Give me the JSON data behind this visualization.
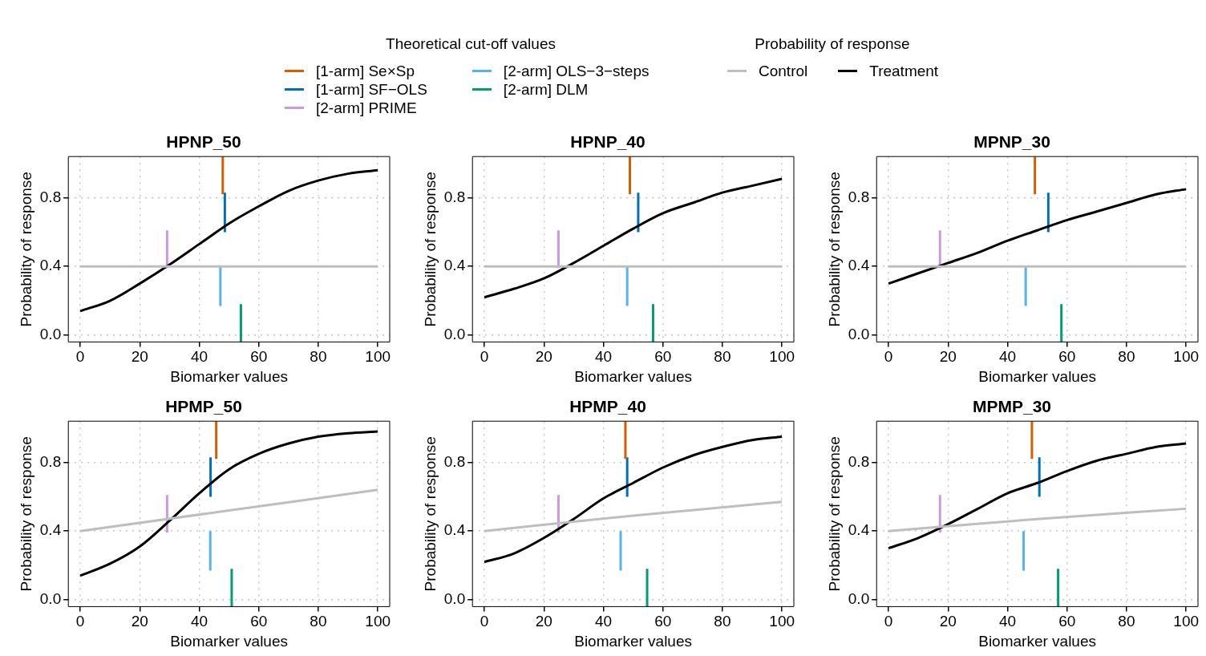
{
  "chart_data": [
    {
      "type": "line",
      "title": "HPNP_50",
      "xlabel": "Biomarker values",
      "ylabel": "Probability of response",
      "legend_title": "Theoretical cut-off values",
      "annotations": [
        "Probability of response"
      ],
      "legend": "top",
      "grid": true,
      "marker": "none",
      "line_style": "solid",
      "xlim": [
        -4,
        104
      ],
      "ylim": [
        -0.04,
        1.04
      ],
      "xticks": [
        0,
        20,
        40,
        60,
        80,
        100
      ],
      "yticks": [
        {
          "value": 0,
          "label": "0.0"
        },
        {
          "value": 0.4,
          "label": "0.4"
        },
        {
          "value": 0.8,
          "label": "0.8"
        }
      ],
      "x": [
        0,
        10,
        20,
        30,
        40,
        50,
        60,
        70,
        80,
        90,
        100
      ],
      "series": [
        {
          "name": "Control",
          "color": "#bebebe",
          "x": [
            0,
            100
          ],
          "values": [
            0.4,
            0.4
          ]
        },
        {
          "name": "Treatment",
          "color": "#000000",
          "values": [
            0.14,
            0.2,
            0.3,
            0.41,
            0.53,
            0.65,
            0.75,
            0.84,
            0.9,
            0.94,
            0.96
          ]
        },
        {
          "name": "[1-arm] Se×Sp",
          "color": "#d55e00",
          "x": [
            47.9,
            47.9
          ],
          "values": [
            0.82,
            1.04
          ]
        },
        {
          "name": "[1-arm] SF−OLS",
          "color": "#0072b2",
          "x": [
            48.6,
            48.6
          ],
          "values": [
            0.6,
            0.83
          ]
        },
        {
          "name": "[2-arm] PRIME",
          "color": "#cc99e6",
          "x": [
            29.2,
            29.2
          ],
          "values": [
            0.39,
            0.61
          ]
        },
        {
          "name": "[2-arm] OLS−3−steps",
          "color": "#56b4e9",
          "x": [
            47.1,
            47.1
          ],
          "values": [
            0.17,
            0.4
          ]
        },
        {
          "name": "[2-arm] DLM",
          "color": "#009e73",
          "x": [
            54,
            54
          ],
          "values": [
            -0.04,
            0.18
          ]
        }
      ]
    },
    {
      "type": "line",
      "title": "HPNP_40",
      "xlabel": "Biomarker values",
      "ylabel": "Probability of response",
      "grid": true,
      "marker": "none",
      "line_style": "solid",
      "xlim": [
        -4,
        104
      ],
      "ylim": [
        -0.04,
        1.04
      ],
      "xticks": [
        0,
        20,
        40,
        60,
        80,
        100
      ],
      "yticks": [
        {
          "value": 0,
          "label": "0.0"
        },
        {
          "value": 0.4,
          "label": "0.4"
        },
        {
          "value": 0.8,
          "label": "0.8"
        }
      ],
      "x": [
        0,
        10,
        20,
        30,
        40,
        50,
        60,
        70,
        80,
        90,
        100
      ],
      "series": [
        {
          "color": "#bebebe",
          "x": [
            0,
            100
          ],
          "values": [
            0.4,
            0.4
          ]
        },
        {
          "color": "#000000",
          "values": [
            0.22,
            0.27,
            0.33,
            0.42,
            0.52,
            0.62,
            0.71,
            0.77,
            0.83,
            0.87,
            0.91
          ]
        },
        {
          "color": "#d55e00",
          "x": [
            48.9,
            48.9
          ],
          "values": [
            0.82,
            1.04
          ]
        },
        {
          "color": "#0072b2",
          "x": [
            51.7,
            51.7
          ],
          "values": [
            0.6,
            0.83
          ]
        },
        {
          "color": "#cc99e6",
          "x": [
            24.9,
            24.9
          ],
          "values": [
            0.39,
            0.61
          ]
        },
        {
          "color": "#56b4e9",
          "x": [
            48,
            48
          ],
          "values": [
            0.17,
            0.4
          ]
        },
        {
          "color": "#009e73",
          "x": [
            56.7,
            56.7
          ],
          "values": [
            -0.04,
            0.18
          ]
        }
      ]
    },
    {
      "type": "line",
      "title": "MPNP_30",
      "xlabel": "Biomarker values",
      "ylabel": "Probability of response",
      "grid": true,
      "marker": "none",
      "line_style": "solid",
      "xlim": [
        -4,
        104
      ],
      "ylim": [
        -0.04,
        1.04
      ],
      "xticks": [
        0,
        20,
        40,
        60,
        80,
        100
      ],
      "yticks": [
        {
          "value": 0,
          "label": "0.0"
        },
        {
          "value": 0.4,
          "label": "0.4"
        },
        {
          "value": 0.8,
          "label": "0.8"
        }
      ],
      "x": [
        0,
        10,
        20,
        30,
        40,
        50,
        60,
        70,
        80,
        90,
        100
      ],
      "series": [
        {
          "color": "#bebebe",
          "x": [
            0,
            100
          ],
          "values": [
            0.4,
            0.4
          ]
        },
        {
          "color": "#000000",
          "values": [
            0.3,
            0.36,
            0.42,
            0.48,
            0.55,
            0.61,
            0.67,
            0.72,
            0.77,
            0.82,
            0.85
          ]
        },
        {
          "color": "#d55e00",
          "x": [
            49.2,
            49.2
          ],
          "values": [
            0.82,
            1.04
          ]
        },
        {
          "color": "#0072b2",
          "x": [
            53.7,
            53.7
          ],
          "values": [
            0.6,
            0.83
          ]
        },
        {
          "color": "#cc99e6",
          "x": [
            17.3,
            17.3
          ],
          "values": [
            0.39,
            0.61
          ]
        },
        {
          "color": "#56b4e9",
          "x": [
            46.1,
            46.1
          ],
          "values": [
            0.17,
            0.4
          ]
        },
        {
          "color": "#009e73",
          "x": [
            58.1,
            58.1
          ],
          "values": [
            -0.04,
            0.18
          ]
        }
      ]
    },
    {
      "type": "line",
      "title": "HPMP_50",
      "xlabel": "Biomarker values",
      "ylabel": "Probability of response",
      "grid": true,
      "marker": "none",
      "line_style": "solid",
      "xlim": [
        -4,
        104
      ],
      "ylim": [
        -0.04,
        1.04
      ],
      "xticks": [
        0,
        20,
        40,
        60,
        80,
        100
      ],
      "yticks": [
        {
          "value": 0,
          "label": "0.0"
        },
        {
          "value": 0.4,
          "label": "0.4"
        },
        {
          "value": 0.8,
          "label": "0.8"
        }
      ],
      "x": [
        0,
        10,
        20,
        30,
        40,
        50,
        60,
        70,
        80,
        90,
        100
      ],
      "series": [
        {
          "color": "#bebebe",
          "x": [
            0,
            50,
            100
          ],
          "values": [
            0.4,
            0.52,
            0.64
          ]
        },
        {
          "color": "#000000",
          "values": [
            0.14,
            0.21,
            0.31,
            0.46,
            0.62,
            0.76,
            0.85,
            0.91,
            0.95,
            0.97,
            0.98
          ]
        },
        {
          "color": "#d55e00",
          "x": [
            45.7,
            45.7
          ],
          "values": [
            0.82,
            1.04
          ]
        },
        {
          "color": "#0072b2",
          "x": [
            43.8,
            43.8
          ],
          "values": [
            0.6,
            0.83
          ]
        },
        {
          "color": "#cc99e6",
          "x": [
            29.2,
            29.2
          ],
          "values": [
            0.39,
            0.61
          ]
        },
        {
          "color": "#56b4e9",
          "x": [
            43.7,
            43.7
          ],
          "values": [
            0.17,
            0.4
          ]
        },
        {
          "color": "#009e73",
          "x": [
            50.9,
            50.9
          ],
          "values": [
            -0.04,
            0.18
          ]
        }
      ]
    },
    {
      "type": "line",
      "title": "HPMP_40",
      "xlabel": "Biomarker values",
      "ylabel": "Probability of response",
      "grid": true,
      "marker": "none",
      "line_style": "solid",
      "xlim": [
        -4,
        104
      ],
      "ylim": [
        -0.04,
        1.04
      ],
      "xticks": [
        0,
        20,
        40,
        60,
        80,
        100
      ],
      "yticks": [
        {
          "value": 0,
          "label": "0.0"
        },
        {
          "value": 0.4,
          "label": "0.4"
        },
        {
          "value": 0.8,
          "label": "0.8"
        }
      ],
      "x": [
        0,
        10,
        20,
        30,
        40,
        50,
        60,
        70,
        80,
        90,
        100
      ],
      "series": [
        {
          "color": "#bebebe",
          "x": [
            0,
            50,
            100
          ],
          "values": [
            0.4,
            0.49,
            0.57
          ]
        },
        {
          "color": "#000000",
          "values": [
            0.22,
            0.27,
            0.36,
            0.47,
            0.59,
            0.68,
            0.77,
            0.84,
            0.89,
            0.93,
            0.95
          ]
        },
        {
          "color": "#d55e00",
          "x": [
            47.4,
            47.4
          ],
          "values": [
            0.82,
            1.04
          ]
        },
        {
          "color": "#0072b2",
          "x": [
            48,
            48
          ],
          "values": [
            0.6,
            0.83
          ]
        },
        {
          "color": "#cc99e6",
          "x": [
            24.9,
            24.9
          ],
          "values": [
            0.39,
            0.61
          ]
        },
        {
          "color": "#56b4e9",
          "x": [
            45.8,
            45.8
          ],
          "values": [
            0.17,
            0.4
          ]
        },
        {
          "color": "#009e73",
          "x": [
            54.7,
            54.7
          ],
          "values": [
            -0.04,
            0.18
          ]
        }
      ]
    },
    {
      "type": "line",
      "title": "MPMP_30",
      "xlabel": "Biomarker values",
      "ylabel": "Probability of response",
      "grid": true,
      "marker": "none",
      "line_style": "solid",
      "xlim": [
        -4,
        104
      ],
      "ylim": [
        -0.04,
        1.04
      ],
      "xticks": [
        0,
        20,
        40,
        60,
        80,
        100
      ],
      "yticks": [
        {
          "value": 0,
          "label": "0.0"
        },
        {
          "value": 0.4,
          "label": "0.4"
        },
        {
          "value": 0.8,
          "label": "0.8"
        }
      ],
      "x": [
        0,
        10,
        20,
        30,
        40,
        50,
        60,
        70,
        80,
        90,
        100
      ],
      "series": [
        {
          "color": "#bebebe",
          "x": [
            0,
            50,
            100
          ],
          "values": [
            0.4,
            0.47,
            0.53
          ]
        },
        {
          "color": "#000000",
          "values": [
            0.3,
            0.36,
            0.44,
            0.53,
            0.62,
            0.68,
            0.75,
            0.81,
            0.85,
            0.89,
            0.91
          ]
        },
        {
          "color": "#d55e00",
          "x": [
            48.2,
            48.2
          ],
          "values": [
            0.82,
            1.04
          ]
        },
        {
          "color": "#0072b2",
          "x": [
            50.7,
            50.7
          ],
          "values": [
            0.6,
            0.83
          ]
        },
        {
          "color": "#cc99e6",
          "x": [
            17.3,
            17.3
          ],
          "values": [
            0.39,
            0.61
          ]
        },
        {
          "color": "#56b4e9",
          "x": [
            45.4,
            45.4
          ],
          "values": [
            0.17,
            0.4
          ]
        },
        {
          "color": "#009e73",
          "x": [
            57,
            57
          ],
          "values": [
            -0.04,
            0.18
          ]
        }
      ]
    }
  ]
}
